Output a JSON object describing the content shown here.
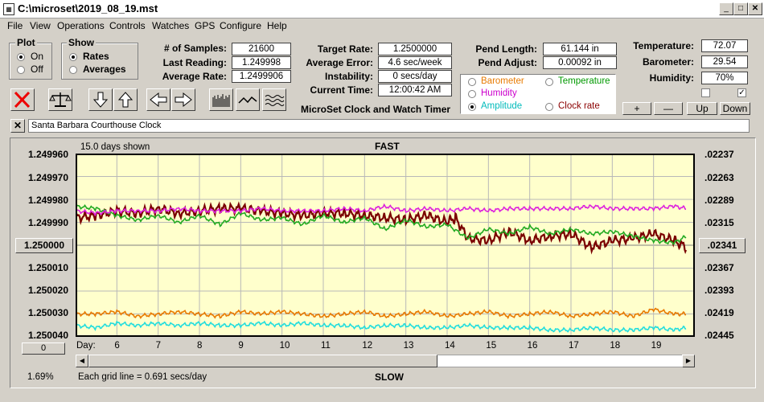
{
  "window": {
    "title": "C:\\microset\\2019_08_19.mst"
  },
  "menu": [
    "File",
    "View",
    "Operations",
    "Controls",
    "Watches",
    "GPS",
    "Configure",
    "Help"
  ],
  "plot_group": {
    "title": "Plot",
    "options": [
      "On",
      "Off"
    ],
    "selected": "On"
  },
  "show_group": {
    "title": "Show",
    "options": [
      "Rates",
      "Averages"
    ],
    "selected": "Rates"
  },
  "stats": {
    "samples_label": "# of Samples:",
    "samples": "21600",
    "last_label": "Last Reading:",
    "last": "1.249998",
    "avg_label": "Average Rate:",
    "avg": "1.2499906",
    "target_label": "Target Rate:",
    "target": "1.2500000",
    "error_label": "Average Error:",
    "error": "4.6 sec/week",
    "instab_label": "Instability:",
    "instab": "0 secs/day",
    "time_label": "Current Time:",
    "time": "12:00:42 AM",
    "pend_label": "Pend Length:",
    "pend": "61.144 in",
    "adjust_label": "Pend Adjust:",
    "adjust": "0.00092 in",
    "temp_label": "Temperature:",
    "temp": "72.07",
    "baro_label": "Barometer:",
    "baro": "29.54",
    "hum_label": "Humidity:",
    "hum": "70%"
  },
  "app_name": "MicroSet Clock and Watch Timer",
  "sensor_options": [
    {
      "label": "Barometer",
      "color": "#e87a00"
    },
    {
      "label": "Temperature",
      "color": "#009900"
    },
    {
      "label": "Humidity",
      "color": "#cc00cc"
    },
    {
      "label": "Amplitude",
      "color": "#00bbbb"
    },
    {
      "label": "Clock rate",
      "color": "#8b0000"
    }
  ],
  "sensor_selected": "Amplitude",
  "scale_buttons": [
    "+",
    "—",
    "Up",
    "Down"
  ],
  "clock_name": "Santa Barbara Courthouse Clock",
  "graph": {
    "days_shown": "15.0 days shown",
    "top_caption": "FAST",
    "bottom_caption": "SLOW",
    "grid_note": "Each grid line = 0.691 secs/day",
    "percent": "1.69%",
    "left_reset": "0",
    "center_left": "1.250000",
    "center_right": ".02341",
    "day_label": "Day:",
    "left_ticks": [
      "1.249960",
      "1.249970",
      "1.249980",
      "1.249990",
      "1.250000",
      "1.250010",
      "1.250020",
      "1.250030",
      "1.250040"
    ],
    "right_ticks": [
      ".02237",
      ".02263",
      ".02289",
      ".02315",
      ".02341",
      ".02367",
      ".02393",
      ".02419",
      ".02445"
    ],
    "days": [
      "6",
      "7",
      "8",
      "9",
      "10",
      "11",
      "12",
      "13",
      "14",
      "15",
      "16",
      "17",
      "18",
      "19"
    ]
  },
  "chart_data": {
    "type": "line",
    "x_range_days": [
      5,
      20
    ],
    "ylim_rate": [
      1.24996,
      1.25004
    ],
    "ylim_amplitude": [
      0.02237,
      0.02445
    ],
    "series": [
      {
        "name": "Clock rate",
        "color": "#7a0000",
        "x": [
          5,
          5.5,
          6,
          6.5,
          7,
          7.5,
          8,
          8.5,
          9,
          9.5,
          10,
          10.5,
          11,
          11.5,
          12,
          12.5,
          13,
          13.5,
          14,
          14.2,
          14.5,
          15,
          15.5,
          16,
          16.5,
          17,
          17.5,
          18,
          18.5,
          19,
          19.5,
          19.8
        ],
        "y": [
          1.249988,
          1.249987,
          1.249985,
          1.249986,
          1.249984,
          1.249986,
          1.249985,
          1.249984,
          1.249984,
          1.249985,
          1.249986,
          1.249987,
          1.249986,
          1.249986,
          1.249987,
          1.249988,
          1.249989,
          1.249987,
          1.24999,
          1.249988,
          1.249997,
          1.249998,
          1.249994,
          1.249998,
          1.249996,
          1.249995,
          1.250001,
          1.249998,
          1.249997,
          1.249995,
          1.249998,
          1.250001
        ]
      },
      {
        "name": "Temperature",
        "color": "#22aa22",
        "x": [
          5,
          5.5,
          6,
          6.5,
          7,
          7.5,
          8,
          8.5,
          9,
          9.5,
          10,
          10.5,
          11,
          11.5,
          12,
          12.5,
          13,
          13.5,
          14,
          14.5,
          15,
          15.5,
          16,
          16.5,
          17,
          17.5,
          18,
          18.5,
          19,
          19.5,
          19.8
        ],
        "y": [
          1.249983,
          1.249984,
          1.249987,
          1.249989,
          1.249987,
          1.24999,
          1.249987,
          1.249991,
          1.249986,
          1.249989,
          1.249988,
          1.249991,
          1.249987,
          1.24999,
          1.249988,
          1.249993,
          1.249989,
          1.249992,
          1.249991,
          1.249997,
          1.249993,
          1.249995,
          1.249992,
          1.249995,
          1.249993,
          1.249995,
          1.249994,
          1.249996,
          1.249998,
          1.249999,
          1.249996
        ]
      },
      {
        "name": "Humidity",
        "color": "#dd22dd",
        "x": [
          5,
          5.5,
          6,
          6.5,
          7,
          7.5,
          8,
          8.5,
          9,
          9.5,
          10,
          10.5,
          11,
          11.5,
          12,
          12.5,
          13,
          13.5,
          14,
          14.5,
          15,
          15.5,
          16,
          16.5,
          17,
          17.5,
          18,
          18.5,
          19,
          19.5,
          19.8
        ],
        "y": [
          1.249985,
          1.249986,
          1.249985,
          1.249985,
          1.249985,
          1.249984,
          1.249985,
          1.249985,
          1.249985,
          1.249984,
          1.249985,
          1.249985,
          1.249985,
          1.249984,
          1.249985,
          1.249983,
          1.249985,
          1.249984,
          1.249985,
          1.249984,
          1.249985,
          1.249984,
          1.249984,
          1.249984,
          1.249984,
          1.249983,
          1.249984,
          1.249984,
          1.249984,
          1.249983,
          1.249984
        ]
      },
      {
        "name": "Barometer",
        "color": "#e87a00",
        "x": [
          5,
          5.5,
          6,
          6.5,
          7,
          7.5,
          8,
          8.5,
          9,
          9.5,
          10,
          10.5,
          11,
          11.5,
          12,
          12.5,
          13,
          13.5,
          14,
          14.5,
          15,
          15.5,
          16,
          16.5,
          17,
          17.5,
          18,
          18.5,
          19,
          19.5,
          19.8
        ],
        "y": [
          1.25003,
          1.25003,
          1.250029,
          1.250031,
          1.25003,
          1.250029,
          1.25003,
          1.250031,
          1.250029,
          1.25003,
          1.250029,
          1.25003,
          1.250031,
          1.25003,
          1.250029,
          1.250031,
          1.25003,
          1.250029,
          1.250031,
          1.25003,
          1.250029,
          1.250031,
          1.25003,
          1.250029,
          1.250031,
          1.25003,
          1.250029,
          1.250031,
          1.250028,
          1.25003,
          1.25003
        ]
      },
      {
        "name": "Amplitude",
        "color": "#22dddd",
        "x": [
          5,
          5.5,
          6,
          6.5,
          7,
          7.5,
          8,
          8.5,
          9,
          9.5,
          10,
          10.5,
          11,
          11.5,
          12,
          12.5,
          13,
          13.5,
          14,
          14.5,
          15,
          15.5,
          16,
          16.5,
          17,
          17.5,
          18,
          18.5,
          19,
          19.5,
          19.8
        ],
        "y": [
          1.250035,
          1.250036,
          1.250034,
          1.250035,
          1.250034,
          1.250035,
          1.250034,
          1.250035,
          1.250035,
          1.250034,
          1.250035,
          1.250034,
          1.250035,
          1.250035,
          1.250036,
          1.250035,
          1.250035,
          1.250036,
          1.250036,
          1.250035,
          1.250036,
          1.250036,
          1.250036,
          1.250037,
          1.250037,
          1.250036,
          1.250037,
          1.250037,
          1.250036,
          1.250037,
          1.250036
        ]
      }
    ]
  }
}
